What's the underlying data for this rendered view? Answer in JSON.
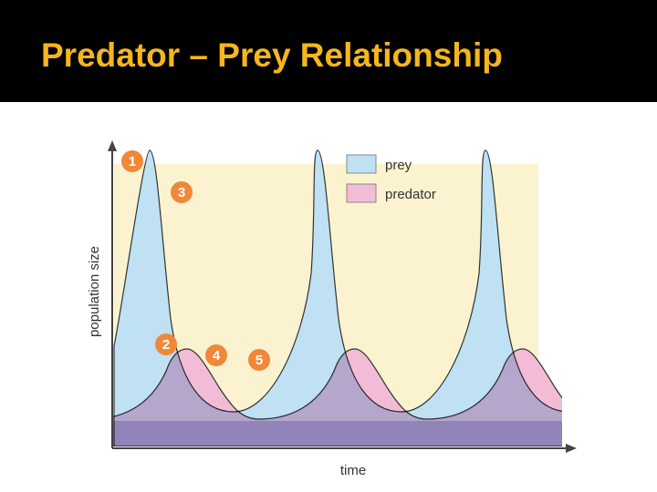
{
  "header": {
    "title": "Predator – Prey Relationship"
  },
  "diagram": {
    "y_axis_label": "population size",
    "x_axis_label": "time",
    "legend": [
      "prey",
      "predator"
    ],
    "markers": [
      "1",
      "3",
      "2",
      "4",
      "5"
    ]
  }
}
